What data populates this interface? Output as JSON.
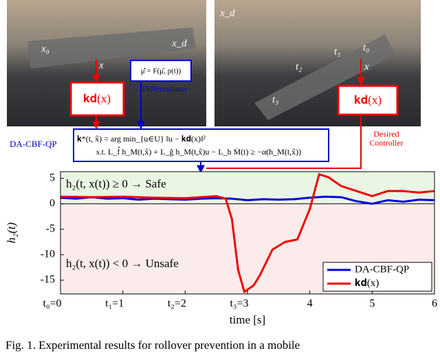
{
  "photos": {
    "left_labels": [
      "x₀",
      "x_d",
      "x"
    ],
    "right_labels": [
      "x_d",
      "t₀",
      "t₁",
      "t₂",
      "t₃",
      "x"
    ]
  },
  "diagram": {
    "left_controller": "𝐤𝐝(x)",
    "right_controller": "𝐤𝐝(x)",
    "differentiator_formula": "μ̂̇ = F(μ̂, p(t))",
    "differentiator": "Differentiator",
    "qp_name": "DA-CBF-QP",
    "qp_line_1": "𝐤*(t, x̃) = arg min_{u∈U} ‖u − 𝐤𝐝(x)‖²",
    "qp_line_2": "s.t. L_f̂ h_M(t,x̃) + L_ĝ h_M(t,x̃)u − L_h Ṁ(t) ≥ −α(h_M(t,x̃))",
    "desired": "Desired",
    "controller": "Controller"
  },
  "chart_data": {
    "type": "line",
    "xlabel": "time [s]",
    "ylabel": "h₂(t)",
    "xlim": [
      0,
      6
    ],
    "ylim": [
      -17.7,
      6.3
    ],
    "xticks": [
      {
        "value": 0,
        "label": "t₀=0"
      },
      {
        "value": 1,
        "label": "t₁=1"
      },
      {
        "value": 2,
        "label": "t₂=2"
      },
      {
        "value": 3,
        "label": "t₃=3"
      },
      4,
      5,
      6
    ],
    "yticks": [
      5,
      0,
      -5,
      -10,
      -15
    ],
    "safe_text": "h₂(t, x(t)) ≥ 0 → Safe",
    "unsafe_text": "h₂(t, x(t)) < 0 → Unsafe",
    "safe_color": "#eaf6e4",
    "unsafe_color": "#fbeceb",
    "legend": "lower right",
    "series": [
      {
        "name": "DA-CBF-QP",
        "color": "#0000dd",
        "x": [
          0,
          0.25,
          0.5,
          0.75,
          1,
          1.25,
          1.5,
          1.75,
          2,
          2.25,
          2.5,
          2.75,
          3,
          3.25,
          3.5,
          3.75,
          4,
          4.25,
          4.5,
          4.75,
          5,
          5.25,
          5.5,
          5.75,
          6
        ],
        "values": [
          1.2,
          1.0,
          1.3,
          1.0,
          1.1,
          0.8,
          1.0,
          0.9,
          0.8,
          1.0,
          1.1,
          1.0,
          0.7,
          0.9,
          0.8,
          0.9,
          1.2,
          1.4,
          1.3,
          0.5,
          0.0,
          0.7,
          0.4,
          0.8,
          0.7
        ]
      },
      {
        "name": "𝐤𝐝(x)",
        "color": "#ee0000",
        "x": [
          0,
          0.5,
          1,
          1.5,
          2,
          2.5,
          2.65,
          2.75,
          2.85,
          2.95,
          3.1,
          3.2,
          3.4,
          3.6,
          3.8,
          4.0,
          4.15,
          4.3,
          4.5,
          4.75,
          5.0,
          5.25,
          5.5,
          5.75,
          6
        ],
        "values": [
          1.4,
          1.3,
          1.4,
          1.2,
          1.1,
          1.5,
          1.0,
          -3,
          -13,
          -17.3,
          -16,
          -14,
          -9,
          -7.5,
          -7,
          -1,
          5.8,
          5.2,
          3.5,
          2.5,
          1.5,
          2.5,
          2.5,
          2.2,
          2.5
        ]
      }
    ]
  },
  "caption": "Fig. 1. Experimental results for rollover prevention in a mobile"
}
